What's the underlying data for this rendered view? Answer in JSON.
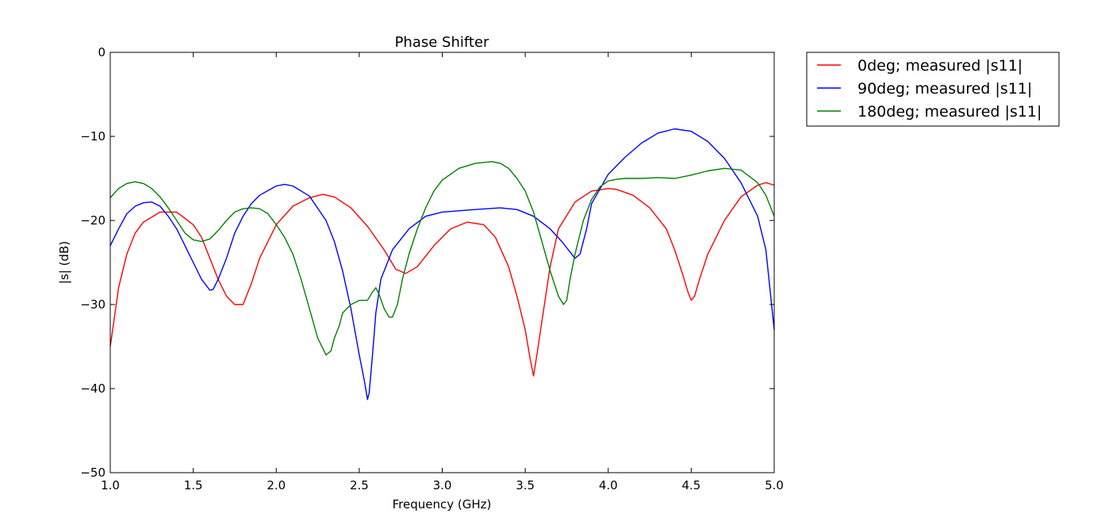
{
  "chart_data": {
    "type": "line",
    "title": "Phase Shifter",
    "xlabel": "Frequency (GHz)",
    "ylabel": "|s| (dB)",
    "xlim": [
      1.0,
      5.0
    ],
    "ylim": [
      -50,
      0
    ],
    "x_ticks": [
      "1.0",
      "1.5",
      "2.0",
      "2.5",
      "3.0",
      "3.5",
      "4.0",
      "4.5",
      "5.0"
    ],
    "y_ticks": [
      "0",
      "−10",
      "−20",
      "−30",
      "−40",
      "−50"
    ],
    "grid": false,
    "legend_position": "outside-top-right",
    "series": [
      {
        "name": "0deg; measured |s11|",
        "color": "#ff0000",
        "x": [
          1.0,
          1.05,
          1.1,
          1.15,
          1.2,
          1.3,
          1.4,
          1.5,
          1.55,
          1.6,
          1.65,
          1.7,
          1.75,
          1.8,
          1.85,
          1.9,
          2.0,
          2.1,
          2.2,
          2.28,
          2.35,
          2.45,
          2.55,
          2.65,
          2.72,
          2.78,
          2.85,
          2.95,
          3.05,
          3.15,
          3.25,
          3.32,
          3.4,
          3.45,
          3.5,
          3.53,
          3.55,
          3.57,
          3.6,
          3.65,
          3.7,
          3.8,
          3.9,
          4.0,
          4.05,
          4.15,
          4.25,
          4.35,
          4.4,
          4.45,
          4.48,
          4.5,
          4.52,
          4.55,
          4.6,
          4.7,
          4.8,
          4.9,
          4.95,
          5.0
        ],
        "values": [
          -35,
          -28,
          -24,
          -21.5,
          -20.2,
          -19,
          -19,
          -20.5,
          -22,
          -24.5,
          -27,
          -29,
          -30,
          -30,
          -27.5,
          -24.5,
          -20.5,
          -18.3,
          -17.3,
          -16.9,
          -17.2,
          -18.5,
          -20.7,
          -23.5,
          -25.8,
          -26.3,
          -25.5,
          -23,
          -21,
          -20.2,
          -20.5,
          -22,
          -25.5,
          -29,
          -33,
          -36.5,
          -38.5,
          -36,
          -32,
          -25.5,
          -21,
          -17.8,
          -16.5,
          -16.2,
          -16.3,
          -17,
          -18.5,
          -21,
          -23.5,
          -26.5,
          -28.5,
          -29.5,
          -29,
          -27,
          -24,
          -20,
          -17.2,
          -15.8,
          -15.5,
          -15.8
        ]
      },
      {
        "name": "90deg; measured |s11|",
        "color": "#0000ff",
        "x": [
          1.0,
          1.05,
          1.1,
          1.15,
          1.2,
          1.25,
          1.3,
          1.35,
          1.4,
          1.45,
          1.5,
          1.55,
          1.6,
          1.62,
          1.65,
          1.7,
          1.75,
          1.8,
          1.85,
          1.9,
          2.0,
          2.05,
          2.1,
          2.2,
          2.3,
          2.35,
          2.4,
          2.45,
          2.5,
          2.53,
          2.55,
          2.56,
          2.58,
          2.6,
          2.63,
          2.7,
          2.8,
          2.9,
          3.0,
          3.2,
          3.35,
          3.45,
          3.55,
          3.65,
          3.72,
          3.78,
          3.8,
          3.83,
          3.87,
          3.9,
          4.0,
          4.1,
          4.2,
          4.3,
          4.4,
          4.5,
          4.6,
          4.7,
          4.8,
          4.9,
          4.95,
          5.0
        ],
        "values": [
          -23,
          -21,
          -19.2,
          -18.3,
          -17.9,
          -17.8,
          -18.3,
          -19.5,
          -21,
          -23,
          -25,
          -27,
          -28.3,
          -28.2,
          -27,
          -24.5,
          -21.5,
          -19.5,
          -18,
          -17,
          -15.9,
          -15.7,
          -15.9,
          -17.1,
          -20,
          -22.5,
          -26,
          -30.5,
          -36,
          -39,
          -41.3,
          -40.5,
          -36,
          -31,
          -27,
          -23.5,
          -21,
          -19.5,
          -19,
          -18.7,
          -18.5,
          -18.7,
          -19.5,
          -21,
          -22.5,
          -24,
          -24.5,
          -24,
          -21,
          -18,
          -14.5,
          -12.5,
          -10.8,
          -9.6,
          -9.1,
          -9.4,
          -10.6,
          -12.6,
          -15.5,
          -19.5,
          -23.5,
          -33
        ]
      },
      {
        "name": "180deg; measured |s11|",
        "color": "#008000",
        "x": [
          1.0,
          1.05,
          1.1,
          1.15,
          1.2,
          1.25,
          1.3,
          1.35,
          1.4,
          1.45,
          1.5,
          1.55,
          1.6,
          1.65,
          1.7,
          1.75,
          1.8,
          1.85,
          1.9,
          1.95,
          2.0,
          2.05,
          2.1,
          2.15,
          2.2,
          2.25,
          2.3,
          2.33,
          2.35,
          2.38,
          2.4,
          2.45,
          2.5,
          2.55,
          2.58,
          2.6,
          2.62,
          2.65,
          2.68,
          2.7,
          2.73,
          2.76,
          2.8,
          2.85,
          2.9,
          2.95,
          3.0,
          3.1,
          3.2,
          3.3,
          3.35,
          3.4,
          3.45,
          3.5,
          3.55,
          3.6,
          3.65,
          3.7,
          3.73,
          3.75,
          3.77,
          3.8,
          3.85,
          3.9,
          3.95,
          4.0,
          4.05,
          4.1,
          4.2,
          4.3,
          4.4,
          4.5,
          4.6,
          4.7,
          4.8,
          4.9,
          4.95,
          5.0
        ],
        "values": [
          -17.3,
          -16.2,
          -15.6,
          -15.4,
          -15.6,
          -16.2,
          -17.2,
          -18.5,
          -20,
          -21.5,
          -22.3,
          -22.5,
          -22.2,
          -21.2,
          -20,
          -19,
          -18.6,
          -18.5,
          -18.6,
          -19.2,
          -20.5,
          -22,
          -24,
          -27,
          -30.5,
          -34,
          -36,
          -35.5,
          -34,
          -32.5,
          -31,
          -30,
          -29.5,
          -29.5,
          -28.5,
          -28,
          -28.8,
          -30.5,
          -31.5,
          -31.5,
          -30,
          -27,
          -24,
          -21,
          -18.5,
          -16.5,
          -15.2,
          -13.8,
          -13.2,
          -13,
          -13.2,
          -13.8,
          -15,
          -16.5,
          -19,
          -22.5,
          -26,
          -29,
          -30,
          -29.5,
          -27,
          -24,
          -20,
          -17.5,
          -16,
          -15.3,
          -15.1,
          -15,
          -15,
          -14.9,
          -15,
          -14.6,
          -14.1,
          -13.8,
          -14,
          -15.5,
          -17,
          -19.5
        ]
      }
    ]
  }
}
